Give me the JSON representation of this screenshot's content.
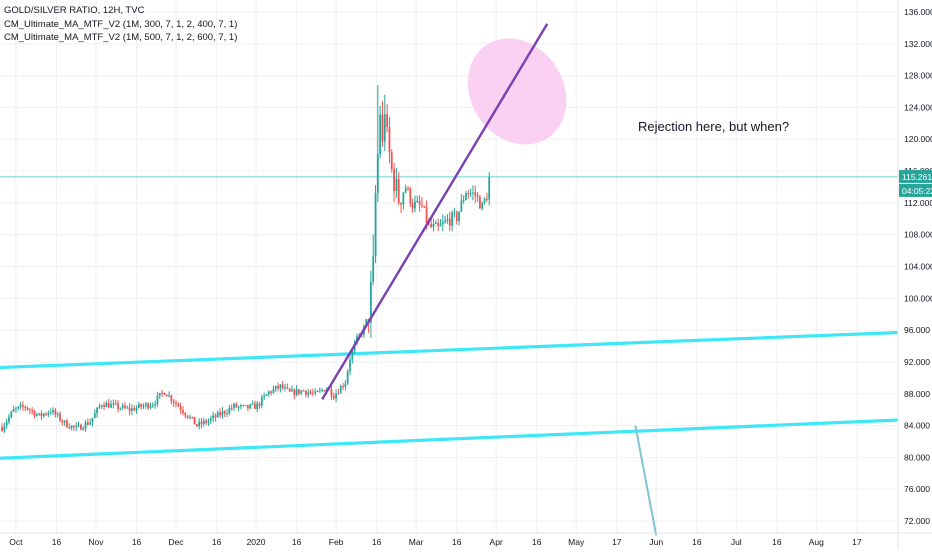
{
  "legend": {
    "title": "GOLD/SILVER RATIO, 12H, TVC",
    "indicators": [
      "CM_Ultimate_MA_MTF_V2 (1M, 300, 7, 1, 2, 400, 7, 1)",
      "CM_Ultimate_MA_MTF_V2 (1M, 500, 7, 1, 2, 600, 7, 1)"
    ]
  },
  "annotation": "Rejection here, but when?",
  "price_label": "115.261",
  "countdown_label": "04:05:22",
  "colors": {
    "up": "#26a69a",
    "down": "#ef5350",
    "channel": "#3ee7f5",
    "trendline": "#7b3fb5",
    "ellipse": "#f9c8f1",
    "grid": "#eef0f5",
    "price_line": "#68d4cf",
    "arrow": "#7fc3d4"
  },
  "chart_data": {
    "type": "candlestick",
    "x_ticks": [
      "Oct",
      "16",
      "Nov",
      "16",
      "Dec",
      "16",
      "2020",
      "16",
      "Feb",
      "16",
      "Mar",
      "16",
      "Apr",
      "16",
      "May",
      "17",
      "Jun",
      "16",
      "Jul",
      "16",
      "Aug",
      "17"
    ],
    "y_ticks": [
      "72.000",
      "76.000",
      "80.000",
      "84.000",
      "88.000",
      "92.000",
      "96.000",
      "100.000",
      "104.000",
      "108.000",
      "112.000",
      "116.000",
      "120.000",
      "124.000",
      "128.000",
      "132.000",
      "136.000"
    ],
    "ylim": [
      70.5,
      137.5
    ],
    "xlim": [
      0,
      326
    ],
    "last_price": 115.261,
    "anchors": [
      [
        0,
        83.8
      ],
      [
        5,
        85.9
      ],
      [
        10,
        86.4
      ],
      [
        16,
        85.2
      ],
      [
        21,
        85.9
      ],
      [
        27,
        84.3
      ],
      [
        32,
        83.6
      ],
      [
        38,
        84.5
      ],
      [
        43,
        86.8
      ],
      [
        49,
        86.4
      ],
      [
        55,
        86.0
      ],
      [
        60,
        86.4
      ],
      [
        65,
        86.8
      ],
      [
        70,
        88.3
      ],
      [
        75,
        86.8
      ],
      [
        80,
        85.3
      ],
      [
        84,
        84.0
      ],
      [
        89,
        84.6
      ],
      [
        95,
        85.6
      ],
      [
        100,
        86.4
      ],
      [
        105,
        86.2
      ],
      [
        110,
        86.5
      ],
      [
        115,
        88.2
      ],
      [
        120,
        88.9
      ],
      [
        124,
        88.1
      ],
      [
        130,
        88.4
      ],
      [
        135,
        87.9
      ],
      [
        140,
        88.8
      ],
      [
        143,
        87.8
      ],
      [
        148,
        89.5
      ],
      [
        150,
        92.5
      ],
      [
        153,
        94.8
      ],
      [
        156,
        96.2
      ],
      [
        158,
        98.0
      ],
      [
        160,
        104.0
      ],
      [
        161,
        113.0
      ],
      [
        162,
        118.0
      ],
      [
        163,
        123.5
      ],
      [
        164,
        119.0
      ],
      [
        165,
        124.0
      ],
      [
        166,
        120.0
      ],
      [
        168,
        116.0
      ],
      [
        171,
        112.5
      ],
      [
        174,
        114.0
      ],
      [
        177,
        111.8
      ],
      [
        181,
        111.5
      ],
      [
        184,
        109.0
      ],
      [
        188,
        108.7
      ],
      [
        192,
        109.8
      ],
      [
        196,
        110.2
      ],
      [
        200,
        113.5
      ],
      [
        204,
        113.0
      ],
      [
        207,
        111.5
      ],
      [
        209,
        113.0
      ],
      [
        210,
        115.2
      ]
    ],
    "upper_channel": [
      [
        0,
        91.3
      ],
      [
        326,
        95.7
      ]
    ],
    "lower_channel": [
      [
        0,
        79.9
      ],
      [
        326,
        84.7
      ]
    ],
    "trendline": [
      [
        138,
        87.3
      ],
      [
        235,
        134.5
      ]
    ],
    "rejection_zone": {
      "center": [
        222,
        126.0
      ],
      "rx": 8.3,
      "ry": 11.2
    },
    "projection_arrow": [
      [
        273,
        84.0
      ],
      [
        282,
        70.2
      ]
    ]
  }
}
